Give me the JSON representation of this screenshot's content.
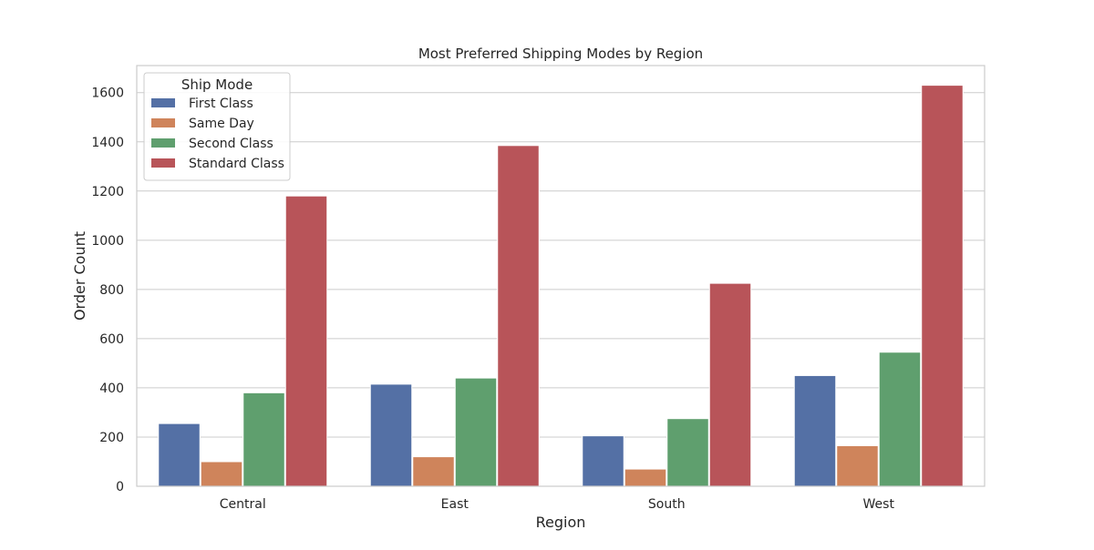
{
  "chart_data": {
    "type": "bar",
    "title": "Most Preferred Shipping Modes by Region",
    "xlabel": "Region",
    "ylabel": "Order Count",
    "categories": [
      "Central",
      "East",
      "South",
      "West"
    ],
    "ylim": [
      0,
      1710
    ],
    "yticks": [
      0,
      200,
      400,
      600,
      800,
      1000,
      1200,
      1400,
      1600
    ],
    "grid": true,
    "legend": {
      "title": "Ship Mode",
      "placement": "top-left"
    },
    "series": [
      {
        "name": "First Class",
        "color": "#5470a5",
        "values": [
          255,
          415,
          205,
          450
        ]
      },
      {
        "name": "Same Day",
        "color": "#cf845b",
        "values": [
          100,
          120,
          70,
          165
        ]
      },
      {
        "name": "Second Class",
        "color": "#5f9f6e",
        "values": [
          380,
          440,
          275,
          545
        ]
      },
      {
        "name": "Standard Class",
        "color": "#b85459",
        "values": [
          1180,
          1385,
          825,
          1630
        ]
      }
    ]
  }
}
